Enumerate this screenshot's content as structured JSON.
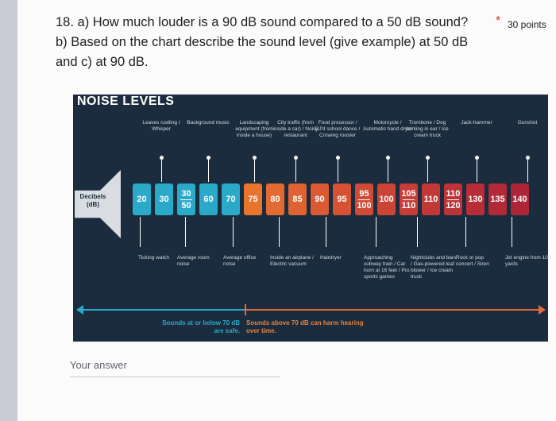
{
  "question": {
    "line1": "18. a) How much louder is a 90 dB sound compared to a 50 dB sound?",
    "line2": "b) Based on the chart describe the sound level (give example) at 50 dB",
    "line3": "and c) at 90 dB.",
    "required_marker": "*",
    "points": "30 points"
  },
  "chart": {
    "title": "NOISE LEVELS",
    "decibels_label": "Decibels (dB)",
    "top_labels": [
      "Leaves rustling / Whisper",
      "Background music",
      "Landscaping equipment (from inside a house)",
      "City traffic (from inside a car) / Noisy restaurant",
      "Food processor / DJ'd school dance / Crowing rooster",
      "Motorcycle / Automatic hand dryer",
      "Trombone / Dog barking in ear / Ice cream truck",
      "Jack-hammer",
      "Gunshot"
    ],
    "bottom_labels": [
      "Ticking watch",
      "Average room noise",
      "Average office noise",
      "Inside an airplane / Electric vacuum",
      "Hairdryer",
      "Approaching subway train / Car horn at 16 feet / Pro sports games",
      "Nightclubs and bars / Gas-powered leaf blower / Ice cream truck",
      "Rock or pop concert / Siren",
      "Jet engine from 100 yards"
    ],
    "levels": [
      {
        "top": "20",
        "bottom": "",
        "color": "#2aa9c9"
      },
      {
        "top": "30",
        "bottom": "",
        "color": "#2aa9c9"
      },
      {
        "top": "30",
        "bottom": "50",
        "color": "#2aa9c9"
      },
      {
        "top": "60",
        "bottom": "",
        "color": "#2aa9c9"
      },
      {
        "top": "70",
        "bottom": "",
        "color": "#2aa9c9"
      },
      {
        "top": "75",
        "bottom": "",
        "color": "#e8742e"
      },
      {
        "top": "80",
        "bottom": "",
        "color": "#e36a30"
      },
      {
        "top": "85",
        "bottom": "",
        "color": "#df6232"
      },
      {
        "top": "90",
        "bottom": "",
        "color": "#da5a33"
      },
      {
        "top": "95",
        "bottom": "",
        "color": "#d55234"
      },
      {
        "top": "95",
        "bottom": "100",
        "color": "#d04b35"
      },
      {
        "top": "100",
        "bottom": "",
        "color": "#cb4436"
      },
      {
        "top": "105",
        "bottom": "110",
        "color": "#c63e37"
      },
      {
        "top": "110",
        "bottom": "",
        "color": "#c13837"
      },
      {
        "top": "110",
        "bottom": "120",
        "color": "#bc3338"
      },
      {
        "top": "130",
        "bottom": "",
        "color": "#b72e38"
      },
      {
        "top": "135",
        "bottom": "",
        "color": "#b22a38"
      },
      {
        "top": "140",
        "bottom": "",
        "color": "#ad2638"
      }
    ],
    "safe_caption": "Sounds at or below 70 dB are safe.",
    "harm_caption": "Sounds above 70 dB can harm hearing over time.",
    "colors": {
      "safe": "#2aa9c9",
      "harm": "#e5823f",
      "panel": "#1a2c3d"
    }
  },
  "answer": {
    "placeholder": "Your answer"
  }
}
